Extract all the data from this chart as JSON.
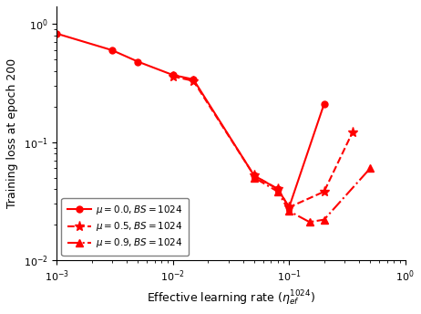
{
  "title": "",
  "xlabel": "Effective learning rate ($\\eta_{ef}^{1024}$)",
  "ylabel": "Training loss at epoch 200",
  "series": [
    {
      "label": "$\\mu = 0.0, BS = 1024$",
      "linestyle": "-",
      "marker": "o",
      "color": "red",
      "x": [
        0.001,
        0.003,
        0.005,
        0.01,
        0.015,
        0.05,
        0.08,
        0.1,
        0.2
      ],
      "y": [
        0.83,
        0.6,
        0.48,
        0.37,
        0.34,
        0.052,
        0.04,
        0.028,
        0.21
      ]
    },
    {
      "label": "$\\mu = 0.5, BS = 1024$",
      "linestyle": "--",
      "marker": "*",
      "color": "red",
      "x": [
        0.01,
        0.015,
        0.05,
        0.08,
        0.1,
        0.2,
        0.35
      ],
      "y": [
        0.36,
        0.33,
        0.052,
        0.04,
        0.028,
        0.038,
        0.12
      ]
    },
    {
      "label": "$\\mu = 0.9, BS = 1024$",
      "linestyle": "-.",
      "marker": "^",
      "color": "red",
      "x": [
        0.05,
        0.08,
        0.1,
        0.15,
        0.2,
        0.5
      ],
      "y": [
        0.05,
        0.038,
        0.026,
        0.021,
        0.022,
        0.06
      ]
    }
  ]
}
